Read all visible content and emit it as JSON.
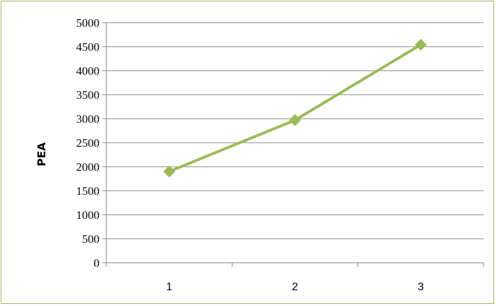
{
  "chart_data": {
    "type": "line",
    "title": "",
    "xlabel": "",
    "ylabel": "PEA",
    "x": [
      "1",
      "2",
      "3"
    ],
    "ylim": [
      0,
      5000
    ],
    "yticks": [
      0,
      500,
      1000,
      1500,
      2000,
      2500,
      3000,
      3500,
      4000,
      4500,
      5000
    ],
    "grid": true,
    "legend": "none",
    "series": [
      {
        "values": [
          1900,
          2970,
          4540
        ],
        "color": "#9bbb59",
        "marker": "diamond"
      }
    ]
  },
  "colors": {
    "frame_border": "#9bbb59",
    "gridline": "#868686",
    "axis": "#868686"
  }
}
